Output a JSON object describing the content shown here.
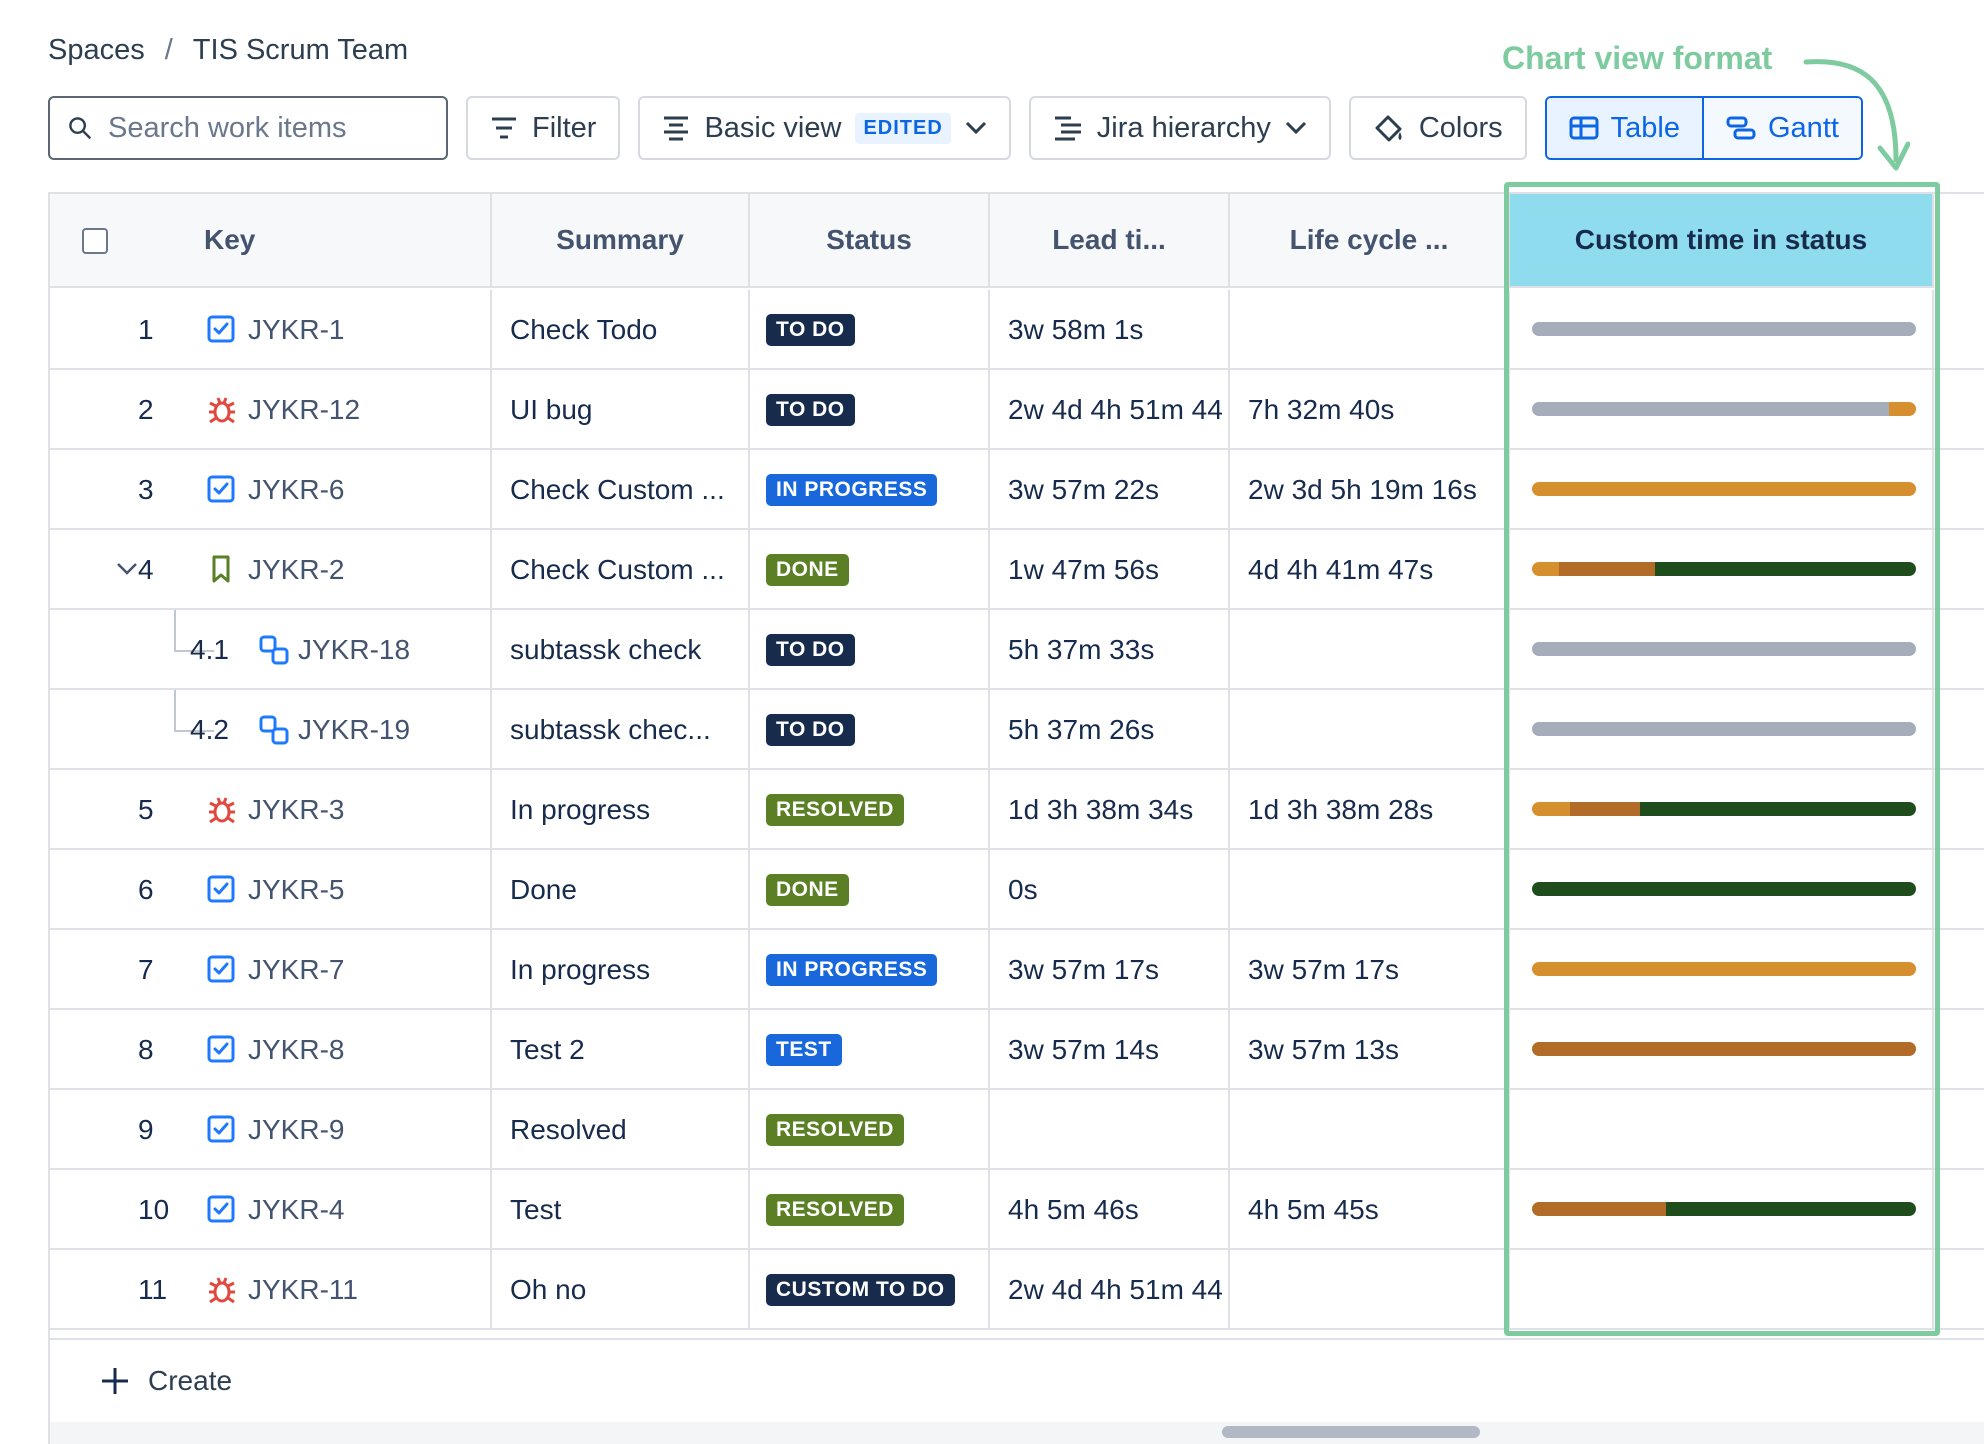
{
  "breadcrumb": {
    "root": "Spaces",
    "separator": "/",
    "current": "TIS Scrum Team"
  },
  "annotation": {
    "text": "Chart view format"
  },
  "toolbar": {
    "search_placeholder": "Search work items",
    "filter_label": "Filter",
    "view_label": "Basic view",
    "view_badge": "EDITED",
    "hierarchy_label": "Jira hierarchy",
    "colors_label": "Colors",
    "table_label": "Table",
    "gantt_label": "Gantt"
  },
  "columns": {
    "key": "Key",
    "summary": "Summary",
    "status": "Status",
    "lead_time": "Lead ti...",
    "life_cycle": "Life cycle ...",
    "custom_time": "Custom time in status",
    "add": "+"
  },
  "colors": {
    "gray": "#a5adba",
    "orange": "#d68f2f",
    "brown": "#b36b28",
    "dark_green": "#1f4c1d",
    "highlight": "#7fcba0"
  },
  "rows": [
    {
      "index": "1",
      "icon": "task-icon",
      "key": "JYKR-1",
      "summary": "Check Todo",
      "status": "TO DO",
      "status_kind": "todo",
      "lead": "3w 58m 1s",
      "life": "",
      "bar": [
        [
          "gray",
          1
        ]
      ]
    },
    {
      "index": "2",
      "icon": "bug-icon",
      "key": "JYKR-12",
      "summary": "UI bug",
      "status": "TO DO",
      "status_kind": "todo",
      "lead": "2w 4d 4h 51m 44",
      "life": "7h 32m 40s",
      "bar": [
        [
          "gray",
          0.93
        ],
        [
          "orange",
          0.07
        ]
      ]
    },
    {
      "index": "3",
      "icon": "task-icon",
      "key": "JYKR-6",
      "summary": "Check Custom ...",
      "status": "IN PROGRESS",
      "status_kind": "progress",
      "lead": "3w 57m 22s",
      "life": "2w 3d 5h 19m 16s",
      "bar": [
        [
          "orange",
          1
        ]
      ]
    },
    {
      "index": "4",
      "icon": "story-icon",
      "key": "JYKR-2",
      "summary": "Check Custom ...",
      "status": "DONE",
      "status_kind": "done",
      "lead": "1w 47m 56s",
      "life": "4d 4h 41m 47s",
      "bar": [
        [
          "orange",
          0.07
        ],
        [
          "brown",
          0.25
        ],
        [
          "dark_green",
          0.68
        ]
      ],
      "expanded": true
    },
    {
      "index": "4.1",
      "icon": "subtask-icon",
      "key": "JYKR-18",
      "summary": "subtassk check",
      "status": "TO DO",
      "status_kind": "todo",
      "lead": "5h 37m 33s",
      "life": "",
      "bar": [
        [
          "gray",
          1
        ]
      ],
      "child": true
    },
    {
      "index": "4.2",
      "icon": "subtask-icon",
      "key": "JYKR-19",
      "summary": "subtassk chec...",
      "status": "TO DO",
      "status_kind": "todo",
      "lead": "5h 37m 26s",
      "life": "",
      "bar": [
        [
          "gray",
          1
        ]
      ],
      "child": true
    },
    {
      "index": "5",
      "icon": "bug-icon",
      "key": "JYKR-3",
      "summary": "In progress",
      "status": "RESOLVED",
      "status_kind": "resolved",
      "lead": "1d 3h 38m 34s",
      "life": "1d 3h 38m 28s",
      "bar": [
        [
          "orange",
          0.1
        ],
        [
          "brown",
          0.18
        ],
        [
          "dark_green",
          0.72
        ]
      ]
    },
    {
      "index": "6",
      "icon": "task-icon",
      "key": "JYKR-5",
      "summary": "Done",
      "status": "DONE",
      "status_kind": "done",
      "lead": "0s",
      "life": "",
      "bar": [
        [
          "dark_green",
          1
        ]
      ]
    },
    {
      "index": "7",
      "icon": "task-icon",
      "key": "JYKR-7",
      "summary": "In progress",
      "status": "IN PROGRESS",
      "status_kind": "progress",
      "lead": "3w 57m 17s",
      "life": "3w 57m 17s",
      "bar": [
        [
          "orange",
          1
        ]
      ]
    },
    {
      "index": "8",
      "icon": "task-icon",
      "key": "JYKR-8",
      "summary": "Test 2",
      "status": "TEST",
      "status_kind": "test",
      "lead": "3w 57m 14s",
      "life": "3w 57m 13s",
      "bar": [
        [
          "brown",
          1
        ]
      ]
    },
    {
      "index": "9",
      "icon": "task-icon",
      "key": "JYKR-9",
      "summary": "Resolved",
      "status": "RESOLVED",
      "status_kind": "resolved",
      "lead": "",
      "life": "",
      "bar": []
    },
    {
      "index": "10",
      "icon": "task-icon",
      "key": "JYKR-4",
      "summary": "Test",
      "status": "RESOLVED",
      "status_kind": "resolved",
      "lead": "4h 5m 46s",
      "life": "4h 5m 45s",
      "bar": [
        [
          "brown",
          0.35
        ],
        [
          "dark_green",
          0.65
        ]
      ]
    },
    {
      "index": "11",
      "icon": "bug-icon",
      "key": "JYKR-11",
      "summary": "Oh no",
      "status": "CUSTOM TO DO",
      "status_kind": "custom",
      "lead": "2w 4d 4h 51m 44",
      "life": "",
      "bar": []
    }
  ],
  "footer": {
    "create_label": "Create"
  }
}
